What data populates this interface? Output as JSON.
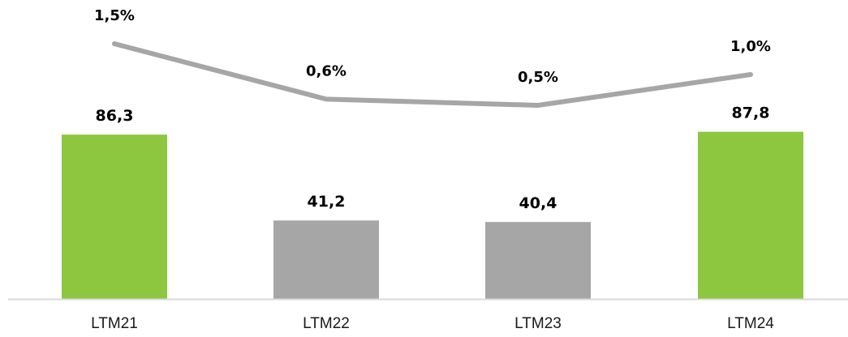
{
  "chart_data": {
    "type": "bar",
    "categories": [
      "LTM21",
      "LTM22",
      "LTM23",
      "LTM24"
    ],
    "series": [
      {
        "type": "bar",
        "values": [
          86.3,
          41.2,
          40.4,
          87.8
        ],
        "labels": [
          "86,3",
          "41,2",
          "40,4",
          "87,8"
        ],
        "colors": [
          "#8dc63f",
          "#a6a6a6",
          "#a6a6a6",
          "#8dc63f"
        ]
      },
      {
        "type": "line",
        "values": [
          1.5,
          0.6,
          0.5,
          1.0
        ],
        "labels": [
          "1,5%",
          "0,6%",
          "0,5%",
          "1,0%"
        ],
        "color": "#a6a6a6"
      }
    ],
    "title": "",
    "xlabel": "",
    "ylabel": "",
    "grid": false,
    "legend": "none"
  }
}
